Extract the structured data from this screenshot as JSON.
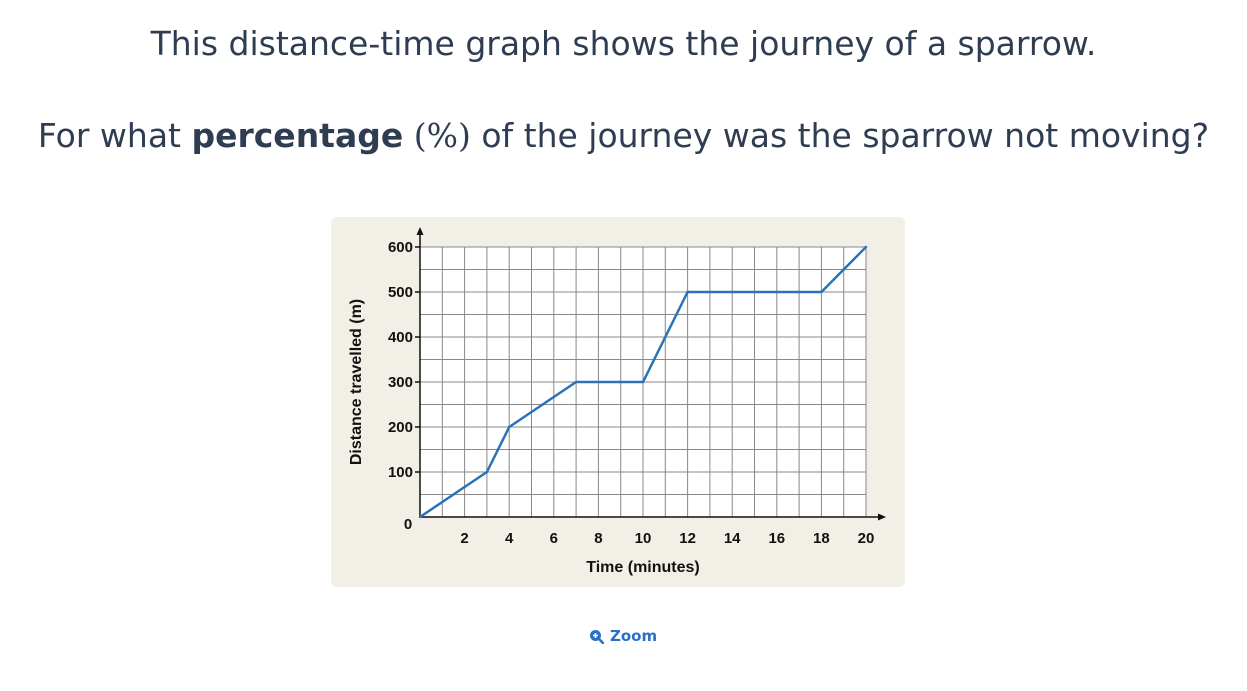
{
  "question": {
    "line1": "This distance-time graph shows the journey of a sparrow.",
    "line2_prefix": "For what ",
    "line2_bold": "percentage",
    "line2_math": " (%)",
    "line2_suffix": " of the journey was the sparrow not moving?"
  },
  "zoom": {
    "label": "Zoom",
    "icon": "zoom-in-icon"
  },
  "colors": {
    "text": "#2f3d52",
    "line": "#2a73b8",
    "card_background": "#f2efe6",
    "grid": "#888888",
    "accent": "#2a6fc9"
  },
  "chart_data": {
    "type": "line",
    "title": "",
    "xlabel": "Time (minutes)",
    "ylabel": "Distance travelled (m)",
    "xlim": [
      0,
      20
    ],
    "ylim": [
      0,
      600
    ],
    "x_tick_labels": [
      "0",
      "2",
      "4",
      "6",
      "8",
      "10",
      "12",
      "14",
      "16",
      "18",
      "20"
    ],
    "y_tick_labels": [
      "100",
      "200",
      "300",
      "400",
      "500",
      "600"
    ],
    "grid": true,
    "x_minor_step": 1,
    "y_minor_step": 50,
    "series": [
      {
        "x": [
          0,
          3,
          4,
          7,
          10,
          12,
          18,
          20
        ],
        "y": [
          0,
          100,
          200,
          300,
          300,
          500,
          500,
          600
        ]
      }
    ]
  }
}
